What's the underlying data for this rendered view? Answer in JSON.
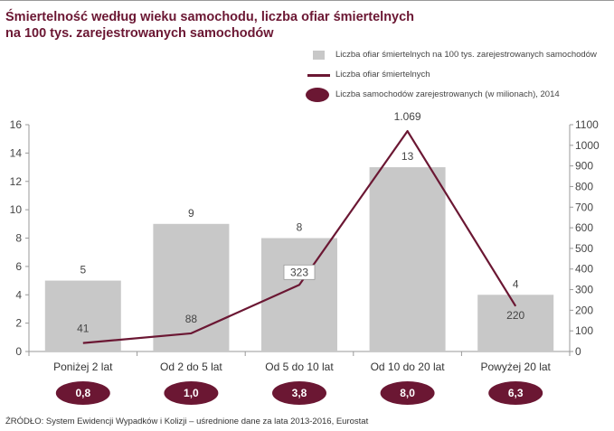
{
  "title_line1": "Śmiertelność według wieku samochodu, liczba ofiar śmiertelnych",
  "title_line2": "na 100 tys. zarejestrowanych samochodów",
  "legend": {
    "bar": "Liczba ofiar śmiertelnych na 100 tys. zarejestrowanych samochodów",
    "line": "Liczba ofiar śmiertelnych",
    "ellipse": "Liczba samochodów zarejestrowanych (w milionach), 2014"
  },
  "source": "ŹRÓDŁO: System Ewidencji Wypadków i Kolizji – uśrednione dane za lata 2013-2016, Eurostat",
  "colors": {
    "bar": "#c8c8c8",
    "line": "#6b1733",
    "title": "#6b1733"
  },
  "chart_data": {
    "type": "bar",
    "categories": [
      "Poniżej 2 lat",
      "Od 2 do 5 lat",
      "Od 5 do 10 lat",
      "Od 10 do 20 lat",
      "Powyżej 20 lat"
    ],
    "series": [
      {
        "name": "Liczba ofiar śmiertelnych na 100 tys. zarejestrowanych samochodów",
        "type": "bar",
        "axis": "left",
        "values": [
          5,
          9,
          8,
          13,
          4
        ],
        "labels": [
          "5",
          "9",
          "8",
          "13",
          "4"
        ]
      },
      {
        "name": "Liczba ofiar śmiertelnych",
        "type": "line",
        "axis": "right",
        "values": [
          41,
          88,
          323,
          1069,
          220
        ],
        "labels": [
          "41",
          "88",
          "323",
          "1.069",
          "220"
        ]
      },
      {
        "name": "Liczba samochodów zarejestrowanych (w milionach), 2014",
        "type": "ellipse",
        "values": [
          0.8,
          1.0,
          3.8,
          8.0,
          6.3
        ],
        "labels": [
          "0,8",
          "1,0",
          "3,8",
          "8,0",
          "6,3"
        ]
      }
    ],
    "y_left": {
      "range": [
        0,
        16
      ],
      "ticks": [
        "0",
        "2",
        "4",
        "6",
        "8",
        "10",
        "12",
        "14",
        "16"
      ]
    },
    "y_right": {
      "range": [
        0,
        1100
      ],
      "ticks": [
        "0",
        "100",
        "200",
        "300",
        "400",
        "500",
        "600",
        "700",
        "800",
        "900",
        "1000",
        "1100"
      ]
    },
    "grid": false,
    "legend_position": "top-right"
  }
}
